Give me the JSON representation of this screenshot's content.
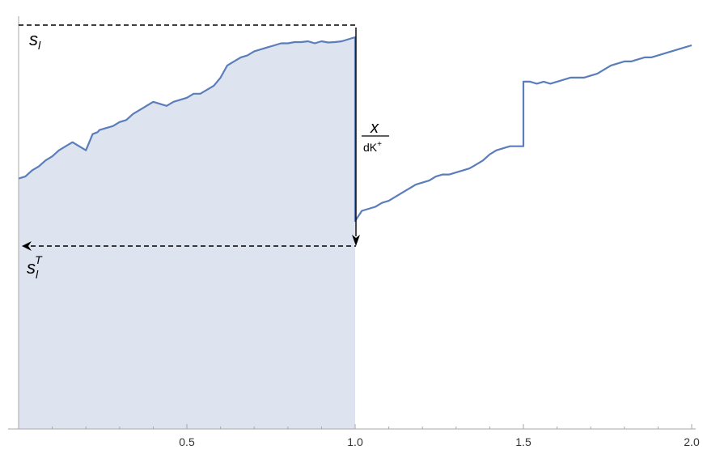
{
  "chart_data": {
    "type": "line",
    "xlim": [
      0,
      2
    ],
    "x_ticks": [
      0.5,
      1.0,
      1.5,
      2.0
    ],
    "x_tick_labels": [
      "0.5",
      "1.0",
      "1.5",
      "2.0"
    ],
    "grid": false,
    "colors": {
      "series_line": "#5b7db9",
      "shaded_area": "#dde4ef",
      "annotation": "#000000"
    },
    "series": [
      {
        "x": [
          0.0,
          0.02,
          0.04,
          0.06,
          0.08,
          0.1,
          0.12,
          0.14,
          0.16,
          0.18,
          0.2,
          0.22,
          0.235,
          0.24,
          0.26,
          0.28,
          0.3,
          0.32,
          0.34,
          0.36,
          0.38,
          0.4,
          0.42,
          0.44,
          0.46,
          0.48,
          0.5,
          0.52,
          0.54,
          0.56,
          0.58,
          0.6,
          0.62,
          0.64,
          0.66,
          0.68,
          0.7,
          0.72,
          0.74,
          0.76,
          0.78,
          0.8,
          0.82,
          0.84,
          0.86,
          0.88,
          0.9,
          0.92,
          0.94,
          0.96,
          0.98,
          1.0,
          1.0,
          1.02,
          1.04,
          1.06,
          1.08,
          1.1,
          1.12,
          1.14,
          1.16,
          1.18,
          1.2,
          1.22,
          1.24,
          1.26,
          1.28,
          1.3,
          1.32,
          1.34,
          1.36,
          1.38,
          1.4,
          1.42,
          1.44,
          1.46,
          1.48,
          1.5,
          1.5,
          1.52,
          1.54,
          1.56,
          1.58,
          1.6,
          1.62,
          1.64,
          1.66,
          1.68,
          1.7,
          1.72,
          1.74,
          1.76,
          1.78,
          1.8,
          1.82,
          1.84,
          1.86,
          1.88,
          1.9,
          1.92,
          1.94,
          1.96,
          1.98,
          2.0
        ],
        "y": [
          0.62,
          0.625,
          0.64,
          0.65,
          0.665,
          0.675,
          0.69,
          0.7,
          0.71,
          0.7,
          0.69,
          0.73,
          0.735,
          0.74,
          0.745,
          0.75,
          0.76,
          0.765,
          0.78,
          0.79,
          0.8,
          0.81,
          0.805,
          0.8,
          0.81,
          0.815,
          0.82,
          0.83,
          0.83,
          0.84,
          0.85,
          0.87,
          0.9,
          0.91,
          0.92,
          0.925,
          0.935,
          0.94,
          0.945,
          0.95,
          0.955,
          0.955,
          0.958,
          0.958,
          0.96,
          0.955,
          0.96,
          0.957,
          0.958,
          0.96,
          0.965,
          0.97,
          0.515,
          0.54,
          0.545,
          0.55,
          0.56,
          0.565,
          0.575,
          0.585,
          0.595,
          0.605,
          0.61,
          0.615,
          0.625,
          0.63,
          0.63,
          0.635,
          0.64,
          0.645,
          0.655,
          0.665,
          0.68,
          0.69,
          0.695,
          0.7,
          0.7,
          0.7,
          0.86,
          0.86,
          0.855,
          0.86,
          0.855,
          0.86,
          0.865,
          0.87,
          0.87,
          0.87,
          0.875,
          0.88,
          0.89,
          0.9,
          0.905,
          0.91,
          0.91,
          0.915,
          0.92,
          0.92,
          0.925,
          0.93,
          0.935,
          0.94,
          0.945,
          0.95
        ]
      }
    ],
    "ylim": [
      0.0,
      1.0
    ]
  }
}
